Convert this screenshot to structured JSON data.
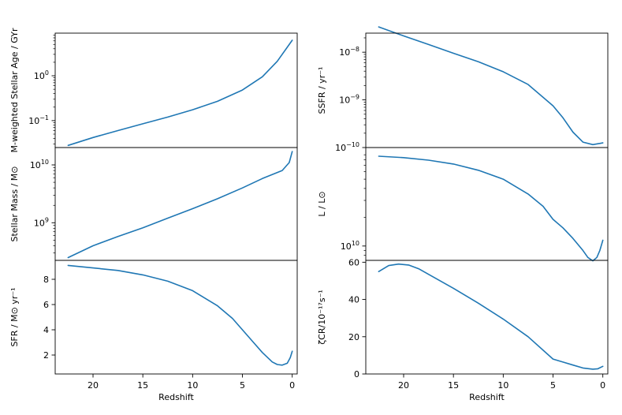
{
  "chart_data": [
    {
      "type": "line",
      "panel": "left-top",
      "ylabel": "M-weighted Stellar Age / GYr",
      "yscale": "log",
      "ylim_exp": [
        -1.6,
        0.95
      ],
      "yticks": [
        {
          "value": 0.1,
          "base": "10",
          "exp": "−1"
        },
        {
          "value": 1,
          "base": "10",
          "exp": "0"
        }
      ],
      "series": [
        {
          "x": [
            22.5,
            20,
            17.5,
            15,
            12.5,
            10,
            7.5,
            5,
            3,
            1.5,
            0
          ],
          "y": [
            0.028,
            0.042,
            0.06,
            0.085,
            0.12,
            0.175,
            0.27,
            0.48,
            0.95,
            2.1,
            6.2
          ],
          "color": "#1f77b4"
        }
      ]
    },
    {
      "type": "line",
      "panel": "left-middle",
      "ylabel": "Stellar Mass / M⊙",
      "yscale": "log",
      "ylim_exp": [
        8.35,
        10.3
      ],
      "yticks": [
        {
          "value": 1000000000,
          "base": "10",
          "exp": "9"
        },
        {
          "value": 10000000000,
          "base": "10",
          "exp": "10"
        }
      ],
      "series": [
        {
          "x": [
            22.5,
            20,
            17.5,
            15,
            12.5,
            10,
            7.5,
            5,
            3,
            1,
            0.3,
            0
          ],
          "y": [
            250000000,
            400000000,
            580000000,
            820000000,
            1200000000,
            1750000000,
            2600000000,
            4000000000,
            5800000000,
            8000000000,
            11000000000,
            17000000000
          ],
          "color": "#1f77b4"
        }
      ]
    },
    {
      "type": "line",
      "panel": "left-bottom",
      "ylabel": "SFR / M⊙ yr⁻¹",
      "xlabel": "Redshift",
      "ylim": [
        0.5,
        9.5
      ],
      "yticks": [
        2,
        4,
        6,
        8
      ],
      "series": [
        {
          "x": [
            22.5,
            20,
            17.5,
            15,
            12.5,
            10,
            7.5,
            6,
            5,
            4,
            3,
            2,
            1.5,
            1,
            0.5,
            0.2,
            0
          ],
          "y": [
            9.1,
            8.9,
            8.7,
            8.35,
            7.85,
            7.1,
            5.9,
            4.9,
            4.0,
            3.1,
            2.2,
            1.45,
            1.25,
            1.2,
            1.35,
            1.8,
            2.3
          ],
          "color": "#1f77b4"
        }
      ]
    },
    {
      "type": "line",
      "panel": "right-top",
      "ylabel": "SSFR / yr⁻¹",
      "yscale": "log",
      "ylim_exp": [
        -10,
        -7.6
      ],
      "yticks": [
        {
          "value": 1e-10,
          "base": "10",
          "exp": "−10"
        },
        {
          "value": 1e-09,
          "base": "10",
          "exp": "−9"
        },
        {
          "value": 1e-08,
          "base": "10",
          "exp": "−8"
        }
      ],
      "series": [
        {
          "x": [
            22.5,
            20,
            17.5,
            15,
            12.5,
            10,
            7.5,
            5,
            4,
            3,
            2,
            1,
            0.5,
            0
          ],
          "y": [
            3.4e-08,
            2.2e-08,
            1.45e-08,
            9.5e-09,
            6.3e-09,
            3.9e-09,
            2.1e-09,
            7.5e-10,
            4.2e-10,
            2.1e-10,
            1.3e-10,
            1.15e-10,
            1.2e-10,
            1.25e-10
          ],
          "color": "#1f77b4"
        }
      ]
    },
    {
      "type": "line",
      "panel": "right-middle",
      "ylabel": "L / L⊙",
      "yscale": "log",
      "ylim_exp": [
        9.85,
        11.03
      ],
      "yticks": [
        {
          "value": 10000000000,
          "base": "10",
          "exp": "10"
        }
      ],
      "series": [
        {
          "x": [
            22.5,
            20,
            17.5,
            15,
            12.5,
            10,
            7.5,
            6,
            5,
            4,
            3,
            2,
            1.5,
            1,
            0.6,
            0.3,
            0
          ],
          "y": [
            87000000000,
            84000000000,
            79000000000,
            72000000000,
            62000000000,
            50000000000,
            35000000000,
            26000000000,
            19000000000,
            15500000000,
            12000000000,
            9000000000,
            7600000000,
            7000000000,
            7600000000,
            9000000000,
            11500000000
          ],
          "color": "#1f77b4"
        }
      ]
    },
    {
      "type": "line",
      "panel": "right-bottom",
      "ylabel": "ζCR/10⁻¹⁷s⁻¹",
      "xlabel": "Redshift",
      "ylim": [
        0,
        61
      ],
      "yticks": [
        0,
        20,
        40,
        60
      ],
      "series": [
        {
          "x": [
            22.5,
            21.5,
            20.5,
            19.5,
            18.5,
            17.5,
            15,
            12.5,
            10,
            7.5,
            5,
            4,
            3,
            2,
            1,
            0.5,
            0
          ],
          "y": [
            55,
            58.2,
            59,
            58.5,
            56.5,
            53.5,
            46,
            38,
            29.5,
            20,
            8,
            6.4,
            4.8,
            3.2,
            2.6,
            2.8,
            4.1
          ],
          "color": "#1f77b4"
        }
      ]
    }
  ],
  "xaxis": {
    "xlim": [
      23.8,
      -0.5
    ],
    "ticks": [
      20,
      15,
      10,
      5,
      0
    ]
  }
}
